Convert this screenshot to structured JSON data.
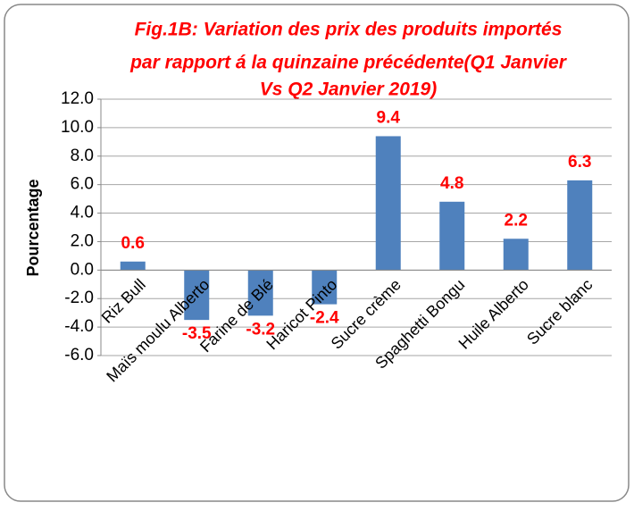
{
  "chart_data": {
    "type": "bar",
    "title": [
      "Fig.1B: Variation des prix des produits importés",
      "par rapport á la quinzaine précédente(Q1 Janvier",
      "Vs Q2 Janvier 2019)"
    ],
    "ylabel": "Pourcentage",
    "categories": [
      "Riz Bull",
      "Maïs moulu  Alberto",
      "Farine de Blé",
      "Haricot  Pinto",
      "Sucre crème",
      "Spaghetti Bongu",
      "Huile Alberto",
      "Sucre blanc"
    ],
    "values": [
      0.6,
      -3.5,
      -3.2,
      -2.4,
      9.4,
      4.8,
      2.2,
      6.3
    ],
    "color": "#4f81bd",
    "label_color": "#ff0000",
    "ylim": [
      -6,
      12
    ],
    "yticks": [
      {
        "value": -6,
        "label": "-6.0"
      },
      {
        "value": -4,
        "label": "-4.0"
      },
      {
        "value": -2,
        "label": "-2.0"
      },
      {
        "value": 0,
        "label": "0.0"
      },
      {
        "value": 2,
        "label": "2.0"
      },
      {
        "value": 4,
        "label": "4.0"
      },
      {
        "value": 6,
        "label": "6.0"
      },
      {
        "value": 8,
        "label": "8.0"
      },
      {
        "value": 10,
        "label": "10.0"
      },
      {
        "value": 12,
        "label": "12.0"
      }
    ],
    "grid": true
  }
}
